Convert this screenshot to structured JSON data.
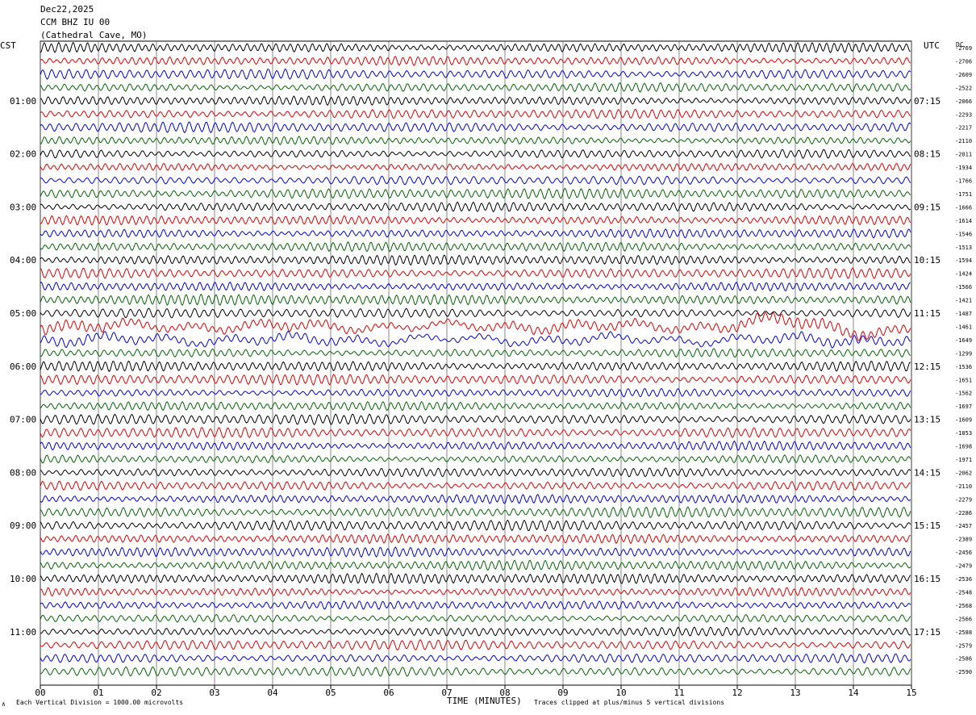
{
  "header": {
    "date": "Dec22,2025",
    "channel": "CCM BHZ IU 00",
    "location": "(Cathedral Cave, MO)"
  },
  "left_zone_label": "CST",
  "right_zone_label": "UTC",
  "dc_label": "DC",
  "footer": {
    "scale_note": "Each Vertical Division = 1000.00 microvolts",
    "x_axis_title": "TIME (MINUTES)",
    "clip_note": "Traces clipped at plus/minus 5 vertical divisions",
    "corner_mark": "∧"
  },
  "colors": {
    "trace_cycle": [
      "#000000",
      "#e00000",
      "#0000dd",
      "#006600"
    ],
    "grid": "#000000",
    "background": "#ffffff"
  },
  "chart_data": {
    "type": "line",
    "title": "",
    "xlabel": "TIME (MINUTES)",
    "x_ticks": [
      "00",
      "01",
      "02",
      "03",
      "04",
      "05",
      "06",
      "07",
      "08",
      "09",
      "10",
      "11",
      "12",
      "13",
      "14",
      "15"
    ],
    "xlim": [
      0,
      15
    ],
    "trace_count": 48,
    "left_time_labels": [
      {
        "row": 4,
        "text": "01:00"
      },
      {
        "row": 8,
        "text": "02:00"
      },
      {
        "row": 12,
        "text": "03:00"
      },
      {
        "row": 16,
        "text": "04:00"
      },
      {
        "row": 20,
        "text": "05:00"
      },
      {
        "row": 24,
        "text": "06:00"
      },
      {
        "row": 28,
        "text": "07:00"
      },
      {
        "row": 32,
        "text": "08:00"
      },
      {
        "row": 36,
        "text": "09:00"
      },
      {
        "row": 40,
        "text": "10:00"
      },
      {
        "row": 44,
        "text": "11:00"
      }
    ],
    "right_time_labels": [
      {
        "row": 4,
        "text": "07:15"
      },
      {
        "row": 8,
        "text": "08:15"
      },
      {
        "row": 12,
        "text": "09:15"
      },
      {
        "row": 16,
        "text": "10:15"
      },
      {
        "row": 20,
        "text": "11:15"
      },
      {
        "row": 24,
        "text": "12:15"
      },
      {
        "row": 28,
        "text": "13:15"
      },
      {
        "row": 32,
        "text": "14:15"
      },
      {
        "row": 36,
        "text": "15:15"
      },
      {
        "row": 40,
        "text": "16:15"
      },
      {
        "row": 44,
        "text": "17:15"
      }
    ],
    "dc_offsets": [
      "-2769",
      "-2706",
      "-2609",
      "-2522",
      "-2066",
      "-2293",
      "-2217",
      "-2110",
      "-2011",
      "-1934",
      "-1766",
      "-1751",
      "-1666",
      "-1614",
      "-1546",
      "-1513",
      "-1594",
      "-1424",
      "-1566",
      "-1421",
      "-1487",
      "-1461",
      "-1649",
      "-1299",
      "-1536",
      "-1651",
      "-1562",
      "-1697",
      "-1609",
      "-1853",
      "-1698",
      "-1971",
      "-2062",
      "-2110",
      "-2279",
      "-2286",
      "-2457",
      "-2389",
      "-2456",
      "-2479",
      "-2536",
      "-2548",
      "-2568",
      "-2566",
      "-2588",
      "-2579",
      "-2586",
      "-2590"
    ]
  }
}
